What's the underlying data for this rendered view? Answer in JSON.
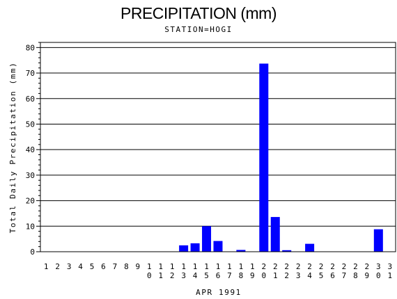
{
  "chart_data": {
    "type": "bar",
    "title": "PRECIPITATION (mm)",
    "subtitle": "STATION=HOGI",
    "xlabel": "APR 1991",
    "ylabel": "Total Daily Precipitation (mm)",
    "ylim": [
      0,
      82
    ],
    "yticks": [
      0,
      10,
      20,
      30,
      40,
      50,
      60,
      70,
      80
    ],
    "grid": true,
    "bar_color": "#0000ff",
    "categories": [
      "1",
      "2",
      "3",
      "4",
      "5",
      "6",
      "7",
      "8",
      "9",
      "10",
      "11",
      "12",
      "13",
      "14",
      "15",
      "16",
      "17",
      "18",
      "19",
      "20",
      "21",
      "22",
      "23",
      "24",
      "25",
      "26",
      "27",
      "28",
      "29",
      "30",
      "31"
    ],
    "values": [
      0,
      0,
      0,
      0,
      0,
      0,
      0,
      0,
      0,
      0,
      0,
      0,
      2.5,
      3.3,
      10,
      4.2,
      0,
      0.7,
      0,
      73.7,
      13.6,
      0.6,
      0,
      3.1,
      0,
      0,
      0,
      0,
      0,
      8.8,
      0
    ]
  }
}
